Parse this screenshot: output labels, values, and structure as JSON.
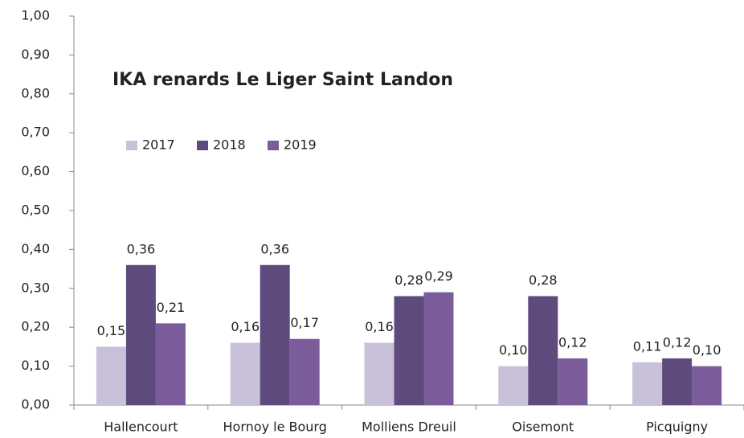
{
  "chart_data": {
    "type": "bar",
    "title": "IKA renards Le Liger Saint Landon",
    "categories": [
      "Hallencourt",
      "Hornoy le Bourg",
      "Molliens Dreuil",
      "Oisemont",
      "Picquigny"
    ],
    "series": [
      {
        "name": "2017",
        "color": "#c9c0d9",
        "values": [
          0.15,
          0.16,
          0.16,
          0.1,
          0.11
        ],
        "value_labels": [
          "0,15",
          "0,16",
          "0,16",
          "0,10",
          "0,11"
        ]
      },
      {
        "name": "2018",
        "color": "#5e4a7d",
        "values": [
          0.36,
          0.36,
          0.28,
          0.28,
          0.12
        ],
        "value_labels": [
          "0,36",
          "0,36",
          "0,28",
          "0,28",
          "0,12"
        ]
      },
      {
        "name": "2019",
        "color": "#7a5c9a",
        "values": [
          0.21,
          0.17,
          0.29,
          0.12,
          0.1
        ],
        "value_labels": [
          "0,21",
          "0,17",
          "0,29",
          "0,12",
          "0,10"
        ]
      }
    ],
    "ylim": [
      0,
      1
    ],
    "yticks": [
      {
        "value": 0,
        "label": "0,00"
      },
      {
        "value": 0.1,
        "label": "0,10"
      },
      {
        "value": 0.2,
        "label": "0,20"
      },
      {
        "value": 0.3,
        "label": "0,30"
      },
      {
        "value": 0.4,
        "label": "0,40"
      },
      {
        "value": 0.5,
        "label": "0,50"
      },
      {
        "value": 0.6,
        "label": "0,60"
      },
      {
        "value": 0.7,
        "label": "0,70"
      },
      {
        "value": 0.8,
        "label": "0,80"
      },
      {
        "value": 0.9,
        "label": "0,90"
      },
      {
        "value": 1,
        "label": "1,00"
      }
    ],
    "legend": "top-left"
  }
}
